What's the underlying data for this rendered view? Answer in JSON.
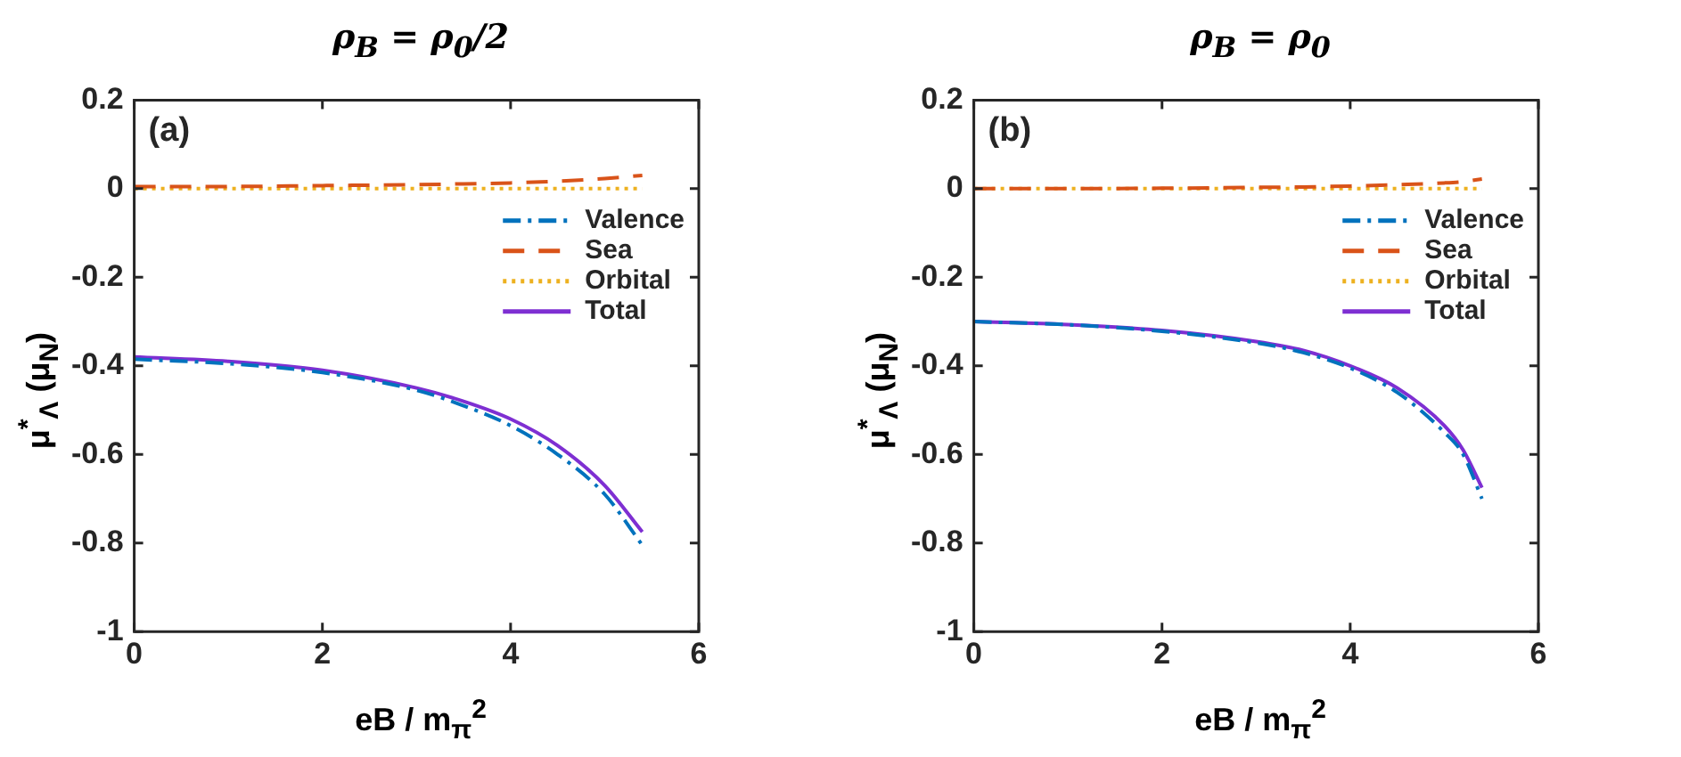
{
  "chart_data": [
    {
      "type": "line",
      "title": "ρ$_{B}$ = ρ$_{0}$/2",
      "xlabel": "eB / m$_{π}$$^{2}$",
      "ylabel": "μ$^{*}$$_{Λ}$ (μ$_{N}$)",
      "annotations": [
        "(a)"
      ],
      "x": [
        0,
        1,
        2,
        3,
        3.5,
        4,
        4.5,
        5,
        5.4
      ],
      "series": [
        {
          "name": "Valence",
          "color": "#0072bd",
          "line_style": "dashdot",
          "values": [
            -0.385,
            -0.395,
            -0.415,
            -0.455,
            -0.49,
            -0.535,
            -0.6,
            -0.69,
            -0.805
          ]
        },
        {
          "name": "Sea",
          "color": "#d95319",
          "line_style": "dashed",
          "values": [
            0.005,
            0.005,
            0.007,
            0.009,
            0.011,
            0.013,
            0.017,
            0.023,
            0.03
          ]
        },
        {
          "name": "Orbital",
          "color": "#edb120",
          "line_style": "dotted",
          "values": [
            0,
            0,
            0,
            0,
            0,
            0,
            0,
            0,
            0
          ]
        },
        {
          "name": "Total",
          "color": "#7e2fd2",
          "line_style": "solid",
          "values": [
            -0.38,
            -0.39,
            -0.41,
            -0.45,
            -0.48,
            -0.52,
            -0.58,
            -0.67,
            -0.775
          ]
        }
      ],
      "xlim": [
        0,
        6
      ],
      "xticks": [
        0,
        2,
        4,
        6
      ],
      "ylim": [
        -1,
        0.2
      ],
      "yticks": [
        -1,
        -0.8,
        -0.6,
        -0.4,
        -0.2,
        0,
        0.2
      ],
      "grid": false,
      "legend": "right",
      "marker": "none"
    },
    {
      "type": "line",
      "title": "ρ$_{B}$ = ρ$_{0}$",
      "xlabel": "eB / m$_{π}$$^{2}$",
      "ylabel": "μ$^{*}$$_{Λ}$ (μ$_{N}$)",
      "annotations": [
        "(b)"
      ],
      "x": [
        0,
        1,
        2,
        3,
        3.5,
        4,
        4.5,
        5,
        5.2,
        5.4
      ],
      "series": [
        {
          "name": "Valence",
          "color": "#0072bd",
          "line_style": "dashdot",
          "values": [
            -0.3,
            -0.307,
            -0.322,
            -0.348,
            -0.37,
            -0.405,
            -0.46,
            -0.55,
            -0.6,
            -0.7
          ]
        },
        {
          "name": "Sea",
          "color": "#d95319",
          "line_style": "dashed",
          "values": [
            0,
            0,
            0.001,
            0.003,
            0.004,
            0.006,
            0.009,
            0.013,
            0.016,
            0.022
          ]
        },
        {
          "name": "Orbital",
          "color": "#edb120",
          "line_style": "dotted",
          "values": [
            0,
            0,
            0,
            0,
            0,
            0,
            0,
            0,
            0,
            0
          ]
        },
        {
          "name": "Total",
          "color": "#7e2fd2",
          "line_style": "solid",
          "values": [
            -0.3,
            -0.307,
            -0.32,
            -0.345,
            -0.365,
            -0.4,
            -0.45,
            -0.535,
            -0.59,
            -0.675
          ]
        }
      ],
      "xlim": [
        0,
        6
      ],
      "xticks": [
        0,
        2,
        4,
        6
      ],
      "ylim": [
        -1,
        0.2
      ],
      "yticks": [
        -1,
        -0.8,
        -0.6,
        -0.4,
        -0.2,
        0,
        0.2
      ],
      "grid": false,
      "legend": "right",
      "marker": "none"
    }
  ]
}
